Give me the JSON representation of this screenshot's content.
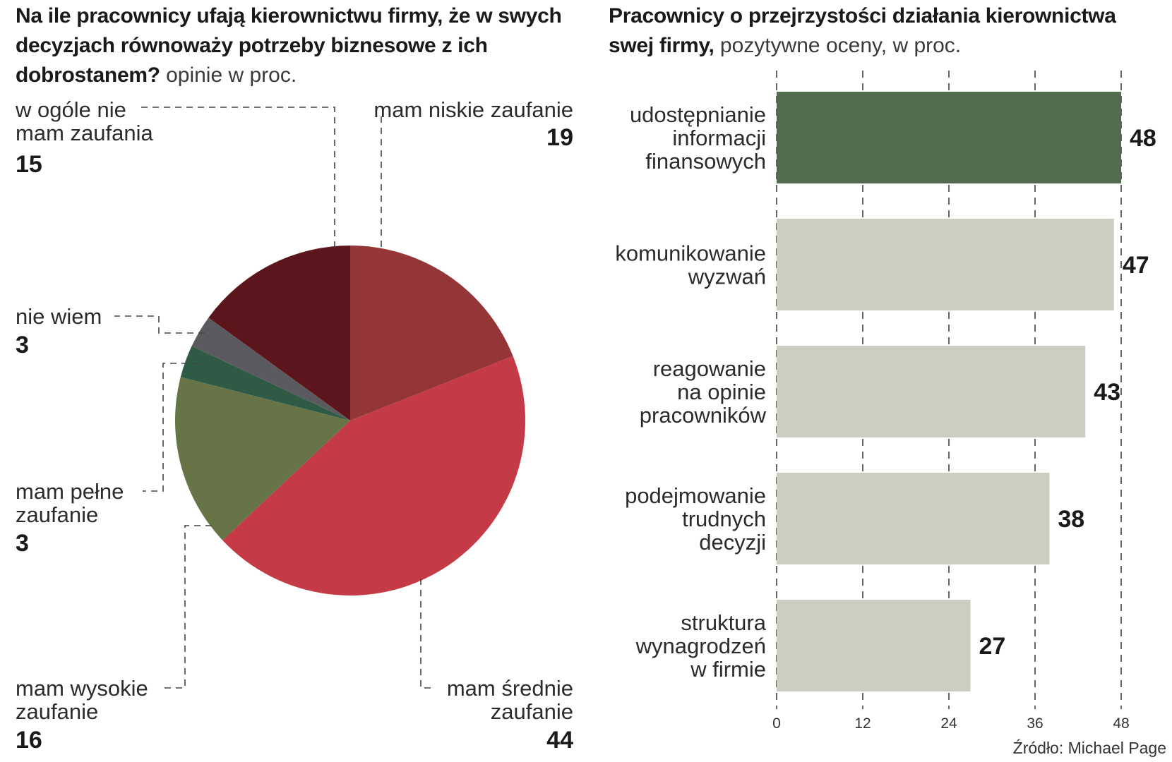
{
  "pie": {
    "title_bold": "Na ile pracownicy ufają kierownictwu firmy, że w swych decyzjach równoważy potrzeby biznesowe z ich dobrostanem?",
    "title_rest": " opinie w proc."
  },
  "bars": {
    "title_bold": "Pracownicy o przejrzystości działania kierownictwa swej firmy,",
    "title_rest": " pozytywne oceny, w proc."
  },
  "source": "Źródło: Michael Page",
  "chart_data": [
    {
      "type": "pie",
      "title": "Na ile pracownicy ufają kierownictwu firmy, że w swych decyzjach równoważy potrzeby biznesowe z ich dobrostanem? opinie w proc.",
      "slices": [
        {
          "label": [
            "mam niskie",
            "zaufanie"
          ],
          "value": 19,
          "color": "#943537"
        },
        {
          "label": [
            "mam średnie",
            "zaufanie"
          ],
          "value": 44,
          "color": "#c43a46"
        },
        {
          "label": [
            "mam wysokie",
            "zaufanie"
          ],
          "value": 16,
          "color": "#667447"
        },
        {
          "label": [
            "mam pełne",
            "zaufanie"
          ],
          "value": 3,
          "color": "#2f5a45"
        },
        {
          "label": [
            "nie wiem"
          ],
          "value": 3,
          "color": "#5b5b5f"
        },
        {
          "label": [
            "w ogóle nie",
            "mam zaufania"
          ],
          "value": 15,
          "color": "#5c161b"
        }
      ]
    },
    {
      "type": "bar",
      "orientation": "horizontal",
      "title": "Pracownicy o przejrzystości działania kierownictwa swej firmy, pozytywne oceny, w proc.",
      "categories": [
        [
          "udostępnianie",
          "informacji",
          "finansowych"
        ],
        [
          "komunikowanie",
          "wyzwań"
        ],
        [
          "reagowanie",
          "na opinie",
          "pracowników"
        ],
        [
          "podejmowanie",
          "trudnych",
          "decyzji"
        ],
        [
          "struktura",
          "wynagrodzeń",
          "w firmie"
        ]
      ],
      "values": [
        48,
        47,
        43,
        38,
        27
      ],
      "colors": [
        "#526b4f",
        "#c9cec1",
        "#c9cec1",
        "#c9cec1",
        "#c9cec1"
      ],
      "xlim": [
        0,
        48
      ],
      "xticks": [
        0,
        12,
        24,
        36,
        48
      ],
      "grid": "dashed vertical"
    }
  ]
}
